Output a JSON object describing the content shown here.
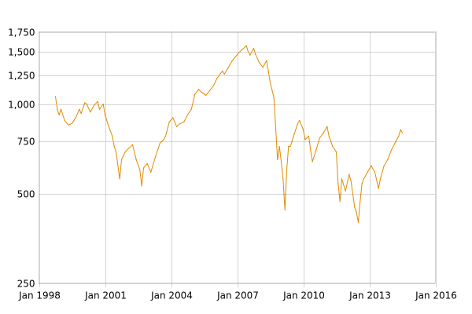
{
  "chart_data": {
    "type": "line",
    "title": "",
    "xlabel": "",
    "ylabel": "",
    "y_scale": "log",
    "grid": true,
    "legend": "none",
    "x_range": [
      "1998-01",
      "2016-01"
    ],
    "ylim": [
      250,
      1750
    ],
    "y_ticks": [
      {
        "value": 250,
        "label": "250"
      },
      {
        "value": 500,
        "label": "500"
      },
      {
        "value": 750,
        "label": "750"
      },
      {
        "value": 1000,
        "label": "1,000"
      },
      {
        "value": 1250,
        "label": "1,250"
      },
      {
        "value": 1500,
        "label": "1,500"
      },
      {
        "value": 1750,
        "label": "1,750"
      }
    ],
    "x_ticks": [
      {
        "value": "1998-01",
        "label": "Jan 1998"
      },
      {
        "value": "2001-01",
        "label": "Jan 2001"
      },
      {
        "value": "2004-01",
        "label": "Jan 2004"
      },
      {
        "value": "2007-01",
        "label": "Jan 2007"
      },
      {
        "value": "2010-01",
        "label": "Jan 2010"
      },
      {
        "value": "2013-01",
        "label": "Jan 2013"
      },
      {
        "value": "2016-01",
        "label": "Jan 2016"
      }
    ],
    "colors": {
      "series": "#e08a00"
    },
    "series": [
      {
        "name": "",
        "points": [
          [
            "1998-10",
            1060
          ],
          [
            "1998-11",
            960
          ],
          [
            "1998-12",
            920
          ],
          [
            "1999-01",
            960
          ],
          [
            "1999-03",
            880
          ],
          [
            "1999-05",
            850
          ],
          [
            "1999-07",
            860
          ],
          [
            "1999-09",
            900
          ],
          [
            "1999-11",
            960
          ],
          [
            "1999-12",
            930
          ],
          [
            "2000-02",
            1010
          ],
          [
            "2000-03",
            1000
          ],
          [
            "2000-05",
            940
          ],
          [
            "2000-07",
            990
          ],
          [
            "2000-09",
            1020
          ],
          [
            "2000-10",
            960
          ],
          [
            "2000-12",
            1000
          ],
          [
            "2001-01",
            920
          ],
          [
            "2001-03",
            840
          ],
          [
            "2001-05",
            780
          ],
          [
            "2001-06",
            720
          ],
          [
            "2001-07",
            690
          ],
          [
            "2001-09",
            560
          ],
          [
            "2001-10",
            650
          ],
          [
            "2001-12",
            690
          ],
          [
            "2002-02",
            710
          ],
          [
            "2002-04",
            730
          ],
          [
            "2002-06",
            650
          ],
          [
            "2002-08",
            600
          ],
          [
            "2002-09",
            530
          ],
          [
            "2002-10",
            610
          ],
          [
            "2002-12",
            630
          ],
          [
            "2003-02",
            590
          ],
          [
            "2003-03",
            620
          ],
          [
            "2003-05",
            680
          ],
          [
            "2003-07",
            740
          ],
          [
            "2003-09",
            760
          ],
          [
            "2003-10",
            780
          ],
          [
            "2003-12",
            870
          ],
          [
            "2004-02",
            900
          ],
          [
            "2004-04",
            840
          ],
          [
            "2004-06",
            860
          ],
          [
            "2004-08",
            870
          ],
          [
            "2004-10",
            920
          ],
          [
            "2004-12",
            960
          ],
          [
            "2005-02",
            1080
          ],
          [
            "2005-04",
            1120
          ],
          [
            "2005-06",
            1090
          ],
          [
            "2005-08",
            1070
          ],
          [
            "2005-10",
            1110
          ],
          [
            "2005-12",
            1150
          ],
          [
            "2006-02",
            1220
          ],
          [
            "2006-04",
            1270
          ],
          [
            "2006-05",
            1290
          ],
          [
            "2006-06",
            1260
          ],
          [
            "2006-08",
            1320
          ],
          [
            "2006-10",
            1390
          ],
          [
            "2006-12",
            1440
          ],
          [
            "2007-02",
            1490
          ],
          [
            "2007-04",
            1530
          ],
          [
            "2007-06",
            1570
          ],
          [
            "2007-07",
            1500
          ],
          [
            "2007-08",
            1460
          ],
          [
            "2007-10",
            1540
          ],
          [
            "2007-11",
            1470
          ],
          [
            "2008-01",
            1380
          ],
          [
            "2008-03",
            1330
          ],
          [
            "2008-05",
            1400
          ],
          [
            "2008-06",
            1290
          ],
          [
            "2008-07",
            1180
          ],
          [
            "2008-09",
            1050
          ],
          [
            "2008-10",
            830
          ],
          [
            "2008-11",
            650
          ],
          [
            "2008-12",
            720
          ],
          [
            "2009-01",
            640
          ],
          [
            "2009-02",
            560
          ],
          [
            "2009-03",
            440
          ],
          [
            "2009-04",
            600
          ],
          [
            "2009-05",
            720
          ],
          [
            "2009-06",
            720
          ],
          [
            "2009-08",
            790
          ],
          [
            "2009-10",
            860
          ],
          [
            "2009-11",
            880
          ],
          [
            "2010-01",
            820
          ],
          [
            "2010-02",
            760
          ],
          [
            "2010-04",
            780
          ],
          [
            "2010-05",
            700
          ],
          [
            "2010-06",
            640
          ],
          [
            "2010-08",
            700
          ],
          [
            "2010-10",
            770
          ],
          [
            "2010-12",
            800
          ],
          [
            "2011-02",
            840
          ],
          [
            "2011-03",
            780
          ],
          [
            "2011-05",
            720
          ],
          [
            "2011-07",
            690
          ],
          [
            "2011-08",
            540
          ],
          [
            "2011-09",
            470
          ],
          [
            "2011-10",
            560
          ],
          [
            "2011-12",
            510
          ],
          [
            "2012-02",
            580
          ],
          [
            "2012-03",
            550
          ],
          [
            "2012-05",
            450
          ],
          [
            "2012-06",
            430
          ],
          [
            "2012-07",
            400
          ],
          [
            "2012-08",
            470
          ],
          [
            "2012-09",
            540
          ],
          [
            "2012-10",
            560
          ],
          [
            "2012-12",
            590
          ],
          [
            "2013-02",
            620
          ],
          [
            "2013-04",
            590
          ],
          [
            "2013-06",
            520
          ],
          [
            "2013-07",
            560
          ],
          [
            "2013-09",
            620
          ],
          [
            "2013-11",
            650
          ],
          [
            "2014-01",
            700
          ],
          [
            "2014-03",
            740
          ],
          [
            "2014-05",
            780
          ],
          [
            "2014-06",
            820
          ],
          [
            "2014-07",
            800
          ]
        ]
      }
    ]
  }
}
